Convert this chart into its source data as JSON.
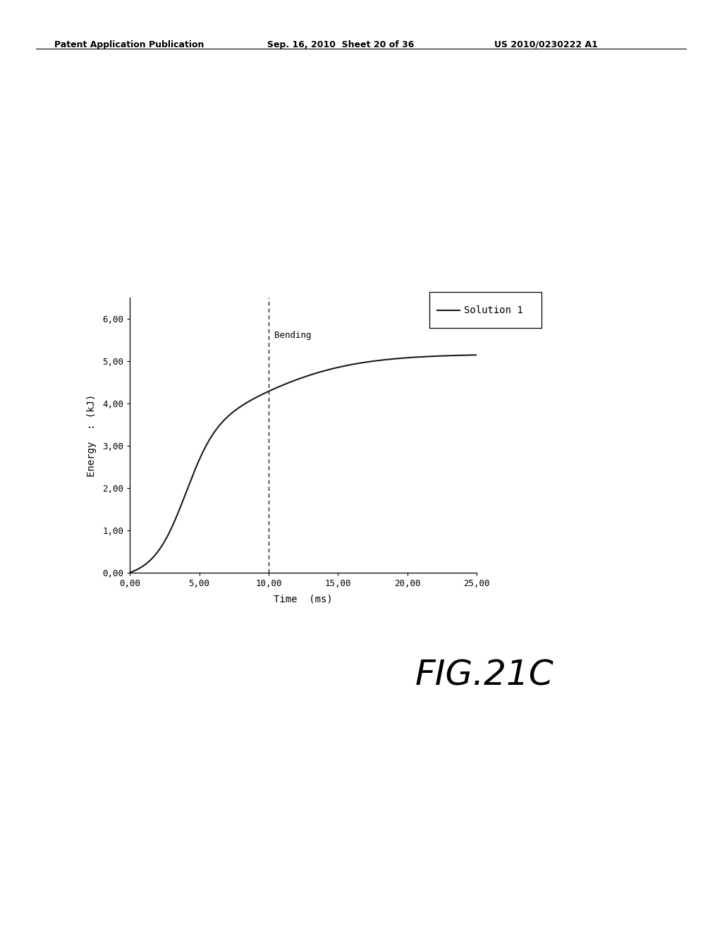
{
  "header_left": "Patent Application Publication",
  "header_mid": "Sep. 16, 2010  Sheet 20 of 36",
  "header_right": "US 2010/0230222 A1",
  "xlabel": "Time  (ms)",
  "ylabel": "Energy  : (kJ)",
  "xlim": [
    0,
    25
  ],
  "ylim": [
    0,
    6.5
  ],
  "xticks": [
    0.0,
    5.0,
    10.0,
    15.0,
    20.0,
    25.0
  ],
  "xtick_labels": [
    "0,00",
    "5,00",
    "10,00",
    "15,00",
    "20,00",
    "25,00"
  ],
  "yticks": [
    0.0,
    1.0,
    2.0,
    3.0,
    4.0,
    5.0,
    6.0
  ],
  "ytick_labels": [
    "0,00",
    "1,00",
    "2,00",
    "3,00",
    "4,00",
    "5,00",
    "6,00"
  ],
  "bending_x": 10.0,
  "bending_label": "Bending",
  "legend_label": "Solution 1",
  "figure_label": "FIG.21C",
  "line_color": "#1a1a1a",
  "background_color": "#ffffff",
  "header_fontsize": 9,
  "axis_label_fontsize": 10,
  "tick_fontsize": 9,
  "legend_fontsize": 10,
  "figure_label_fontsize": 36
}
